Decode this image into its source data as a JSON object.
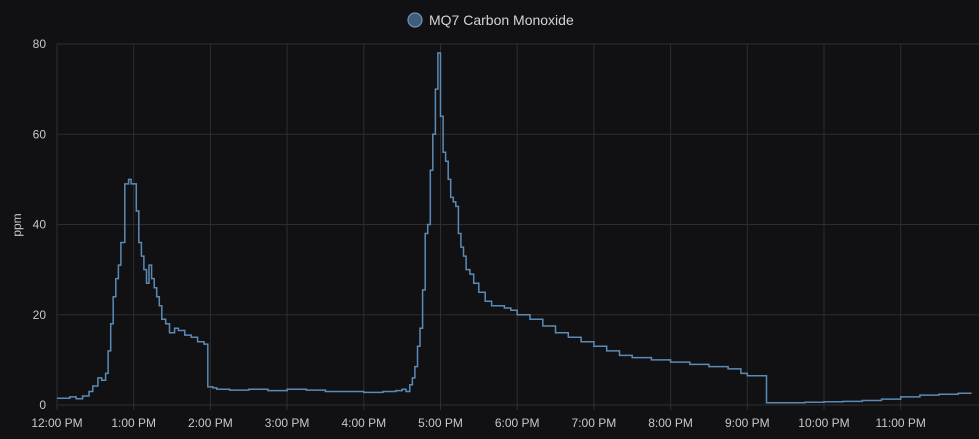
{
  "chart_data": {
    "type": "line",
    "step": true,
    "title": "",
    "xlabel": "",
    "ylabel": "ppm",
    "ylim": [
      0,
      80
    ],
    "yticks": [
      0,
      20,
      40,
      60,
      80
    ],
    "xlim": [
      "12:00 PM",
      "11:55 PM"
    ],
    "xticks": [
      "12:00 PM",
      "1:00 PM",
      "2:00 PM",
      "3:00 PM",
      "4:00 PM",
      "5:00 PM",
      "6:00 PM",
      "7:00 PM",
      "8:00 PM",
      "9:00 PM",
      "10:00 PM",
      "11:00 PM"
    ],
    "grid": true,
    "legend_position": "top",
    "colors": {
      "background": "#111113",
      "grid": "#2e2e31",
      "line": "#5b8ab5",
      "legend_fill": "#3f5c7a",
      "legend_stroke": "#6f94b8"
    },
    "series": [
      {
        "name": "MQ7 Carbon Monoxide",
        "x": [
          "12:00 PM",
          "12:10 PM",
          "12:15 PM",
          "12:20 PM",
          "12:25 PM",
          "12:28 PM",
          "12:32 PM",
          "12:35 PM",
          "12:38 PM",
          "12:40 PM",
          "12:42 PM",
          "12:44 PM",
          "12:46 PM",
          "12:48 PM",
          "12:50 PM",
          "12:53 PM",
          "12:56 PM",
          "12:58 PM",
          "1:02 PM",
          "1:04 PM",
          "1:06 PM",
          "1:08 PM",
          "1:10 PM",
          "1:12 PM",
          "1:14 PM",
          "1:16 PM",
          "1:18 PM",
          "1:20 PM",
          "1:22 PM",
          "1:25 PM",
          "1:28 PM",
          "1:32 PM",
          "1:35 PM",
          "1:40 PM",
          "1:45 PM",
          "1:50 PM",
          "1:55 PM",
          "1:58 PM",
          "2:02 PM",
          "2:05 PM",
          "2:15 PM",
          "2:30 PM",
          "2:45 PM",
          "3:00 PM",
          "3:15 PM",
          "3:30 PM",
          "3:45 PM",
          "4:00 PM",
          "4:15 PM",
          "4:25 PM",
          "4:30 PM",
          "4:33 PM",
          "4:36 PM",
          "4:38 PM",
          "4:40 PM",
          "4:42 PM",
          "4:44 PM",
          "4:46 PM",
          "4:48 PM",
          "4:50 PM",
          "4:52 PM",
          "4:54 PM",
          "4:56 PM",
          "4:58 PM",
          "5:00 PM",
          "5:02 PM",
          "5:04 PM",
          "5:06 PM",
          "5:08 PM",
          "5:10 PM",
          "5:12 PM",
          "5:14 PM",
          "5:16 PM",
          "5:18 PM",
          "5:20 PM",
          "5:23 PM",
          "5:26 PM",
          "5:30 PM",
          "5:35 PM",
          "5:40 PM",
          "5:45 PM",
          "5:50 PM",
          "5:55 PM",
          "6:00 PM",
          "6:10 PM",
          "6:20 PM",
          "6:30 PM",
          "6:40 PM",
          "6:50 PM",
          "7:00 PM",
          "7:10 PM",
          "7:20 PM",
          "7:30 PM",
          "7:45 PM",
          "8:00 PM",
          "8:15 PM",
          "8:30 PM",
          "8:45 PM",
          "8:55 PM",
          "9:00 PM",
          "9:15 PM",
          "9:30 PM",
          "9:45 PM",
          "10:00 PM",
          "10:15 PM",
          "10:30 PM",
          "10:45 PM",
          "11:00 PM",
          "11:15 PM",
          "11:30 PM",
          "11:45 PM",
          "11:55 PM"
        ],
        "values": [
          1.5,
          1.8,
          1.4,
          2.0,
          3.0,
          4.2,
          6.0,
          5.5,
          7.0,
          12.0,
          18.0,
          24.0,
          28.0,
          31.0,
          36.0,
          49.0,
          50.0,
          49.0,
          43.0,
          36.0,
          33.0,
          30.0,
          27.0,
          31.0,
          28.0,
          26.0,
          24.0,
          22.0,
          19.0,
          18.0,
          16.0,
          17.0,
          16.5,
          15.5,
          15.0,
          14.0,
          13.5,
          4.0,
          3.8,
          3.5,
          3.3,
          3.5,
          3.2,
          3.5,
          3.3,
          3.0,
          3.0,
          2.8,
          3.0,
          3.2,
          3.5,
          3.0,
          4.5,
          6.0,
          8.5,
          13.0,
          17.0,
          25.5,
          38.0,
          40.0,
          52.0,
          60.0,
          70.0,
          78.0,
          64.0,
          56.0,
          54.0,
          50.0,
          46.0,
          45.0,
          44.0,
          38.0,
          35.0,
          33.0,
          30.0,
          29.0,
          27.0,
          25.0,
          23.0,
          22.0,
          22.0,
          21.5,
          21.0,
          20.0,
          19.0,
          17.5,
          16.0,
          15.0,
          14.0,
          13.0,
          12.0,
          11.0,
          10.5,
          10.0,
          9.5,
          9.0,
          8.5,
          8.0,
          7.0,
          6.5,
          0.5,
          0.5,
          0.6,
          0.7,
          0.8,
          1.0,
          1.3,
          1.8,
          2.2,
          2.4,
          2.6,
          2.5
        ]
      }
    ]
  }
}
